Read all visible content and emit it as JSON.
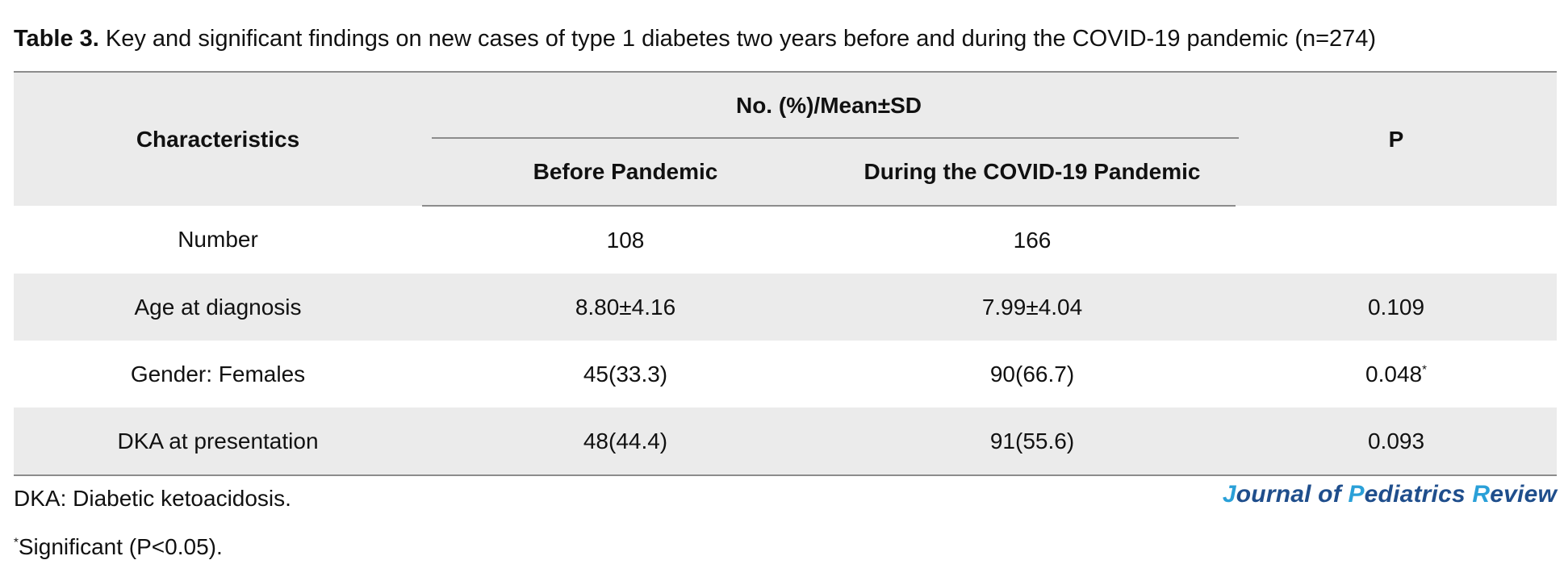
{
  "caption": {
    "lead": "Table 3.",
    "text": " Key and significant findings on new cases of type 1 diabetes two years before and during the COVID-19 pandemic (n=274)"
  },
  "table": {
    "header": {
      "characteristics": "Characteristics",
      "group": "No. (%)/Mean±SD",
      "before": "Before Pandemic",
      "during": "During the COVID-19 Pandemic",
      "p": "P"
    },
    "rows": [
      {
        "label": "Number",
        "before": "108",
        "during": "166",
        "p": "",
        "p_sup": ""
      },
      {
        "label": "Age at diagnosis",
        "before": "8.80±4.16",
        "during": "7.99±4.04",
        "p": "0.109",
        "p_sup": ""
      },
      {
        "label": "Gender: Females",
        "before": "45(33.3)",
        "during": "90(66.7)",
        "p": "0.048",
        "p_sup": "*"
      },
      {
        "label": "DKA at presentation",
        "before": "48(44.4)",
        "during": "91(55.6)",
        "p": "0.093",
        "p_sup": ""
      }
    ]
  },
  "footnotes": {
    "abbreviation": "DKA: Diabetic ketoacidosis.",
    "significance_mark": "*",
    "significance_text": "Significant (P<0.05)."
  },
  "journal_logo": {
    "parts": [
      "J",
      "ournal of ",
      "P",
      "ediatrics ",
      "R",
      "eview"
    ],
    "primary_color": "#1f4e8c",
    "accent_color": "#2aa0d8"
  }
}
